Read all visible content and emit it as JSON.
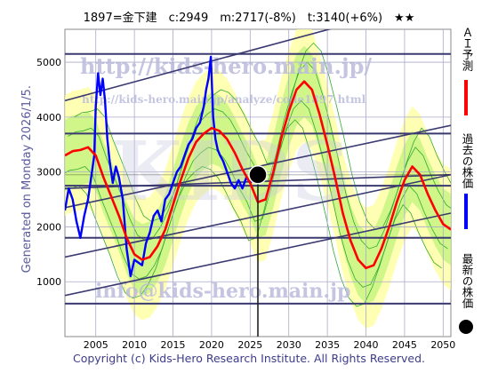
{
  "header": {
    "title": "1897=金下建　c:2949　m:2717(-8%)　t:3140(+6%)　★★"
  },
  "side_text": "Generated on Monday 2026/1/5.",
  "watermarks": {
    "top": "http://kids-hero.main.jp/",
    "mid": "http://kids-hero.main.jp/analyze/code1897.html",
    "bottom": "info@kids-hero.main.jp",
    "logo": "KIDS"
  },
  "footer": "Copyright (c) Kids-Hero Research Institute. All Rights Reserved.",
  "legend": {
    "items": [
      {
        "label": "ＡＩ予測",
        "color": "#ff0000",
        "kind": "line"
      },
      {
        "label": "過去の株価",
        "color": "#0000ff",
        "kind": "line"
      },
      {
        "label": "最新の株価",
        "color": "#000000",
        "kind": "dot"
      }
    ]
  },
  "colors": {
    "ai_line": "#ff0000",
    "price_line": "#0000ff",
    "trend_line": "#3a3a70",
    "grid": "#aaaacc",
    "band_outer": "#ffff99",
    "band_inner": "#aaee66"
  },
  "chart_data": {
    "type": "line",
    "title": "1897=金下建　c:2949　m:2717(-8%)　t:3140(+6%)　★★",
    "xlim": [
      2001,
      2051
    ],
    "ylim": [
      0,
      5600
    ],
    "x_ticks": [
      2005,
      2010,
      2015,
      2020,
      2025,
      2030,
      2035,
      2040,
      2045,
      2050
    ],
    "y_ticks": [
      1000,
      2000,
      3000,
      4000,
      5000
    ],
    "horizontal_levels": [
      5150,
      3700,
      2750,
      1800,
      600
    ],
    "trend_lines": [
      {
        "x": [
          2001,
          2051
        ],
        "y": [
          2350,
          3850
        ]
      },
      {
        "x": [
          2001,
          2051
        ],
        "y": [
          2700,
          2950
        ]
      },
      {
        "x": [
          2001,
          2051
        ],
        "y": [
          1450,
          2950
        ]
      },
      {
        "x": [
          2001,
          2051
        ],
        "y": [
          750,
          2250
        ]
      },
      {
        "x": [
          2001,
          2051
        ],
        "y": [
          4300,
          6200
        ]
      }
    ],
    "latest": {
      "x": 2026.0,
      "y": 2949
    },
    "series": [
      {
        "name": "過去の株価",
        "x": [
          2001.0,
          2001.5,
          2002.0,
          2002.5,
          2003.0,
          2003.5,
          2004.0,
          2004.5,
          2004.8,
          2005.0,
          2005.3,
          2005.6,
          2005.9,
          2006.2,
          2006.5,
          2006.8,
          2007.2,
          2007.6,
          2008.0,
          2008.5,
          2009.0,
          2009.5,
          2010.0,
          2010.5,
          2011.0,
          2011.5,
          2012.0,
          2012.5,
          2013.0,
          2013.5,
          2014.0,
          2014.5,
          2015.0,
          2015.5,
          2016.0,
          2016.5,
          2017.0,
          2017.5,
          2018.0,
          2018.5,
          2019.0,
          2019.3,
          2019.6,
          2019.9,
          2020.2,
          2020.5,
          2020.8,
          2021.1,
          2021.5,
          2022.0,
          2022.5,
          2023.0,
          2023.5,
          2024.0,
          2024.5,
          2025.0,
          2025.5,
          2026.0
        ],
        "y": [
          2300,
          2700,
          2500,
          2100,
          1800,
          2200,
          2500,
          3000,
          3300,
          4200,
          4800,
          4400,
          4700,
          4300,
          3600,
          3200,
          2800,
          3100,
          2900,
          2500,
          1600,
          1100,
          1400,
          1350,
          1300,
          1700,
          1900,
          2200,
          2300,
          2100,
          2500,
          2600,
          2800,
          3000,
          3100,
          3300,
          3500,
          3600,
          3800,
          3900,
          4200,
          4500,
          4700,
          5100,
          4000,
          3600,
          3400,
          3300,
          3200,
          3000,
          2800,
          2700,
          2850,
          2700,
          2900,
          2800,
          2900,
          2949
        ]
      },
      {
        "name": "ＡＩ予測",
        "x": [
          2001,
          2002,
          2003,
          2004,
          2005,
          2006,
          2007,
          2008,
          2009,
          2010,
          2011,
          2012,
          2013,
          2014,
          2015,
          2016,
          2017,
          2018,
          2019,
          2020,
          2021,
          2022,
          2023,
          2024,
          2025,
          2026,
          2027,
          2028,
          2029,
          2030,
          2031,
          2032,
          2033,
          2034,
          2035,
          2036,
          2037,
          2038,
          2039,
          2040,
          2041,
          2042,
          2043,
          2044,
          2045,
          2046,
          2047,
          2048,
          2049,
          2050,
          2051
        ],
        "y": [
          3300,
          3380,
          3400,
          3450,
          3300,
          2900,
          2550,
          2200,
          1800,
          1500,
          1400,
          1450,
          1650,
          1950,
          2400,
          2850,
          3250,
          3550,
          3700,
          3800,
          3750,
          3600,
          3350,
          3050,
          2800,
          2450,
          2500,
          3000,
          3600,
          4100,
          4500,
          4650,
          4500,
          4050,
          3500,
          2900,
          2250,
          1750,
          1400,
          1250,
          1300,
          1600,
          2000,
          2450,
          2850,
          3100,
          2950,
          2600,
          2300,
          2050,
          1950
        ]
      }
    ]
  }
}
